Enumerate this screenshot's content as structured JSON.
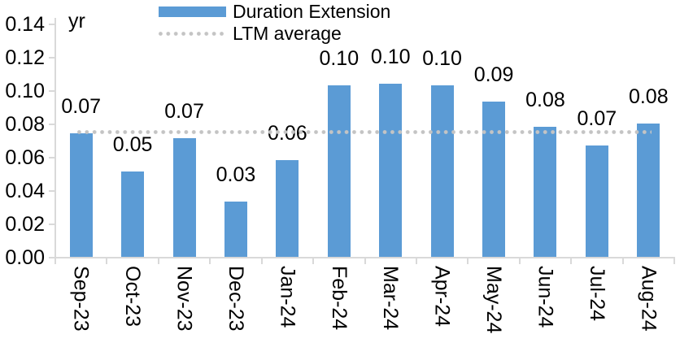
{
  "chart_data": {
    "type": "bar",
    "title": "",
    "unit_label": "yr",
    "categories": [
      "Sep-23",
      "Oct-23",
      "Nov-23",
      "Dec-23",
      "Jan-24",
      "Feb-24",
      "Mar-24",
      "Apr-24",
      "May-24",
      "Jun-24",
      "Jul-24",
      "Aug-24"
    ],
    "series": [
      {
        "name": "Duration Extension",
        "type": "bar",
        "color": "#5B9BD5",
        "values": [
          0.074,
          0.051,
          0.071,
          0.033,
          0.058,
          0.103,
          0.104,
          0.103,
          0.093,
          0.078,
          0.067,
          0.08
        ],
        "data_labels": [
          "0.07",
          "0.05",
          "0.07",
          "0.03",
          "0.06",
          "0.10",
          "0.10",
          "0.10",
          "0.09",
          "0.08",
          "0.07",
          "0.08"
        ]
      },
      {
        "name": "LTM average",
        "type": "line",
        "line_style": "dotted",
        "color": "#C4C4C4",
        "value": 0.075
      }
    ],
    "y_axis": {
      "min": 0,
      "max": 0.14,
      "step": 0.02,
      "tick_labels": [
        "0.00",
        "0.02",
        "0.04",
        "0.06",
        "0.08",
        "0.10",
        "0.12",
        "0.14"
      ],
      "axis_color": "#D9D9D9",
      "text_color": "#000000"
    },
    "xlabel": "",
    "ylabel": "yr",
    "ylim": [
      0,
      0.14
    ],
    "grid": "off",
    "legend_position": "top"
  }
}
